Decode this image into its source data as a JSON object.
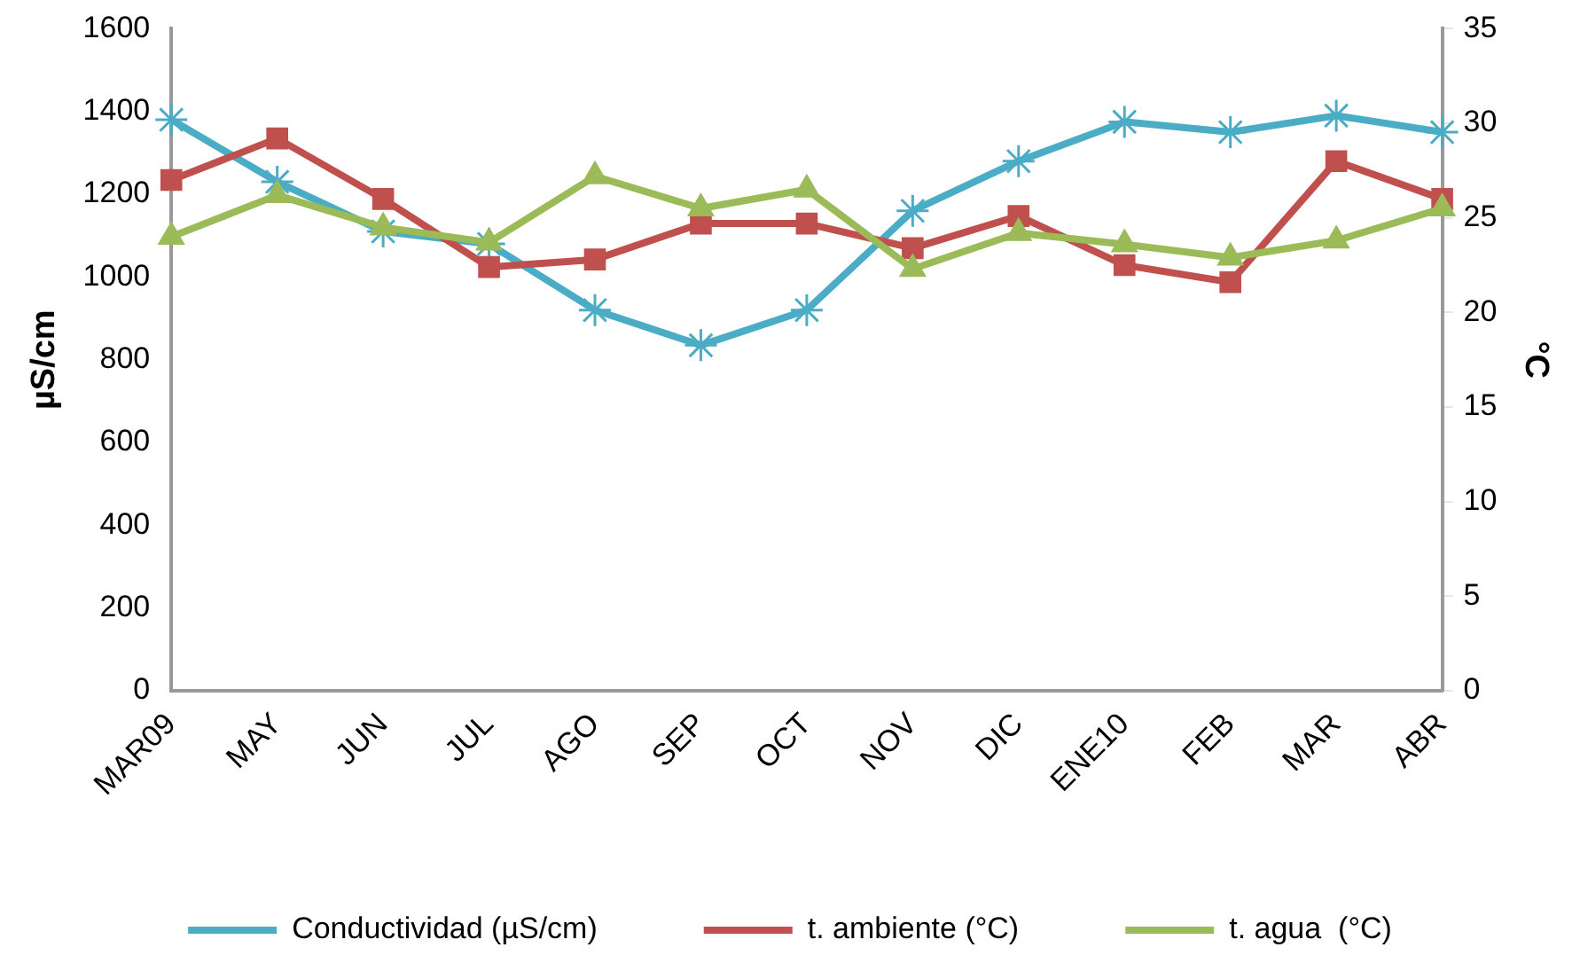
{
  "chart_data": {
    "type": "line",
    "ylabel": "µS/cm",
    "y2label": "°C",
    "categories": [
      "MAR09",
      "MAY",
      "JUN",
      "JUL",
      "AGO",
      "SEP",
      "OCT",
      "NOV",
      "DIC",
      "ENE10",
      "FEB",
      "MAR",
      "ABR"
    ],
    "series": [
      {
        "name": "Conductividad (µS/cm)",
        "color": "#4bacc6",
        "marker": "cross",
        "values": [
          1380,
          1230,
          1110,
          1080,
          920,
          835,
          920,
          1160,
          1280,
          1375,
          1350,
          1390,
          1350
        ]
      },
      {
        "name": "t. ambiente (°C)",
        "color": "#c0504d",
        "marker": "square",
        "axis": "y2",
        "values": [
          27.0,
          29.2,
          26.0,
          22.4,
          22.8,
          24.7,
          24.7,
          23.4,
          25.1,
          22.5,
          21.6,
          28.0,
          26.0
        ]
      },
      {
        "name": "t. agua  (°C)",
        "color": "#9bbb59",
        "marker": "triangle",
        "axis": "y2",
        "values": [
          24.0,
          26.2,
          24.5,
          23.7,
          27.2,
          25.5,
          26.5,
          22.3,
          24.2,
          23.6,
          22.9,
          23.8,
          25.5
        ]
      }
    ],
    "ylim": [
      0,
      1600
    ],
    "yticks": [
      0,
      200,
      400,
      600,
      800,
      1000,
      1200,
      1400,
      1600
    ],
    "y2lim": [
      0,
      35
    ],
    "y2ticks": [
      0,
      5,
      10,
      15,
      20,
      25,
      30,
      35
    ],
    "grid": false,
    "legend": "bottom"
  }
}
